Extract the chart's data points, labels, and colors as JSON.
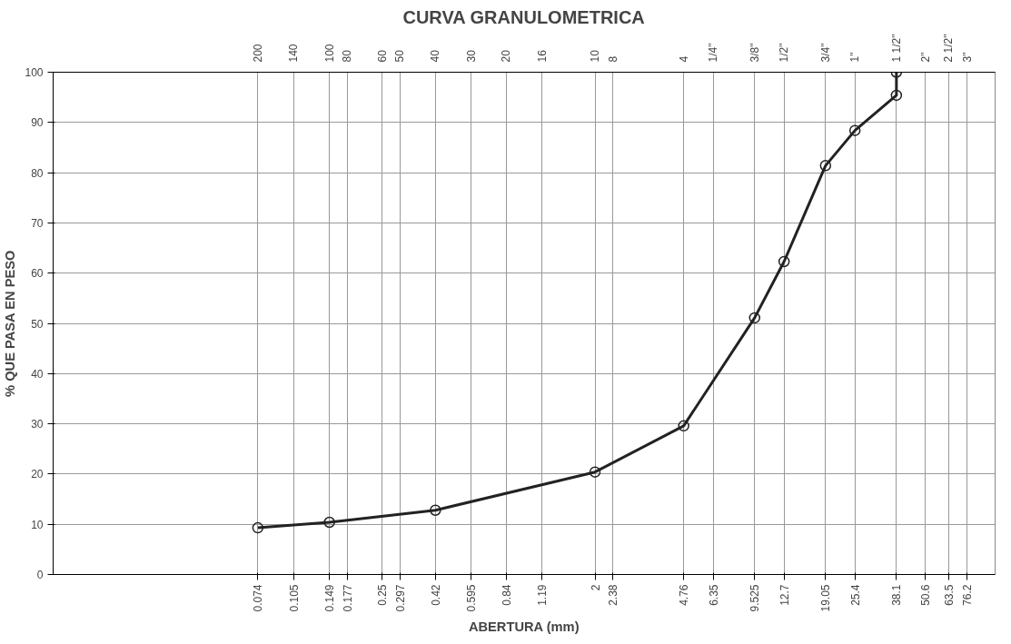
{
  "chart_data": {
    "type": "line",
    "title": "CURVA GRANULOMETRICA",
    "xlabel": "ABERTURA (mm)",
    "ylabel": "% QUE PASA EN PESO",
    "log": "x",
    "grid": true,
    "marker": "circle",
    "line_style": "solid",
    "xlim": [
      0.01,
      100
    ],
    "ylim": [
      0,
      100
    ],
    "xticks": [
      0.074,
      0.105,
      0.149,
      0.177,
      0.25,
      0.297,
      0.42,
      0.595,
      0.84,
      1.19,
      2,
      2.38,
      4.76,
      6.35,
      9.525,
      12.7,
      19.05,
      25.4,
      38.1,
      50.6,
      63.5,
      76.2
    ],
    "annotations": [
      "200",
      "140",
      "100",
      "80",
      "60",
      "50",
      "40",
      "30",
      "20",
      "16",
      "10",
      "8",
      "4",
      "1/4\"",
      "3/8\"",
      "1/2\"",
      "3/4\"",
      "1\"",
      "1 1/2\"",
      "2\"",
      "2 1/2\"",
      "3\""
    ],
    "yticks": [
      0,
      10,
      20,
      30,
      40,
      50,
      60,
      70,
      80,
      90,
      100
    ],
    "series": [
      {
        "color": "#222222",
        "x": [
          0.074,
          0.149,
          0.42,
          2,
          4.76,
          9.525,
          12.7,
          19.05,
          25.4,
          38.1,
          38.1
        ],
        "values": [
          9.3,
          10.4,
          12.8,
          20.4,
          29.6,
          51.1,
          62.3,
          81.4,
          88.4,
          95.4,
          100
        ]
      }
    ]
  }
}
